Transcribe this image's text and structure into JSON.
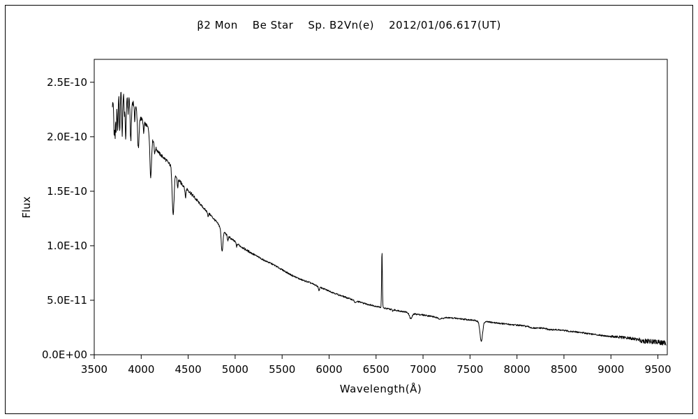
{
  "chart_data": {
    "type": "line",
    "title": "β2 Mon    Be Star    Sp. B2Vn(e)    2012/01/06.617(UT)",
    "xlabel": "Wavelength(Å)",
    "ylabel": "Flux",
    "legend": "none",
    "grid": "off",
    "xlim": [
      3500,
      9600
    ],
    "ylim_e10": [
      0,
      2.71
    ],
    "flux_unit_scale": 1e-10,
    "x_ticks": [
      {
        "v": 3500,
        "label": "3500"
      },
      {
        "v": 4000,
        "label": "4000"
      },
      {
        "v": 4500,
        "label": "4500"
      },
      {
        "v": 5000,
        "label": "5000"
      },
      {
        "v": 5500,
        "label": "5500"
      },
      {
        "v": 6000,
        "label": "6000"
      },
      {
        "v": 6500,
        "label": "6500"
      },
      {
        "v": 7000,
        "label": "7000"
      },
      {
        "v": 7500,
        "label": "7500"
      },
      {
        "v": 8000,
        "label": "8000"
      },
      {
        "v": 8500,
        "label": "8500"
      },
      {
        "v": 9000,
        "label": "9000"
      },
      {
        "v": 9500,
        "label": "9500"
      }
    ],
    "y_ticks": [
      {
        "v": 0.0,
        "label": "0.0E+00"
      },
      {
        "v": 0.5,
        "label": "5.0E-11"
      },
      {
        "v": 1.0,
        "label": "1.0E-10"
      },
      {
        "v": 1.5,
        "label": "1.5E-10"
      },
      {
        "v": 2.0,
        "label": "2.0E-10"
      },
      {
        "v": 2.5,
        "label": "2.5E-10"
      }
    ],
    "sample_range": [
      3693,
      9590
    ],
    "sample_step_angstrom": 3,
    "continuum_e10": [
      [
        3690,
        2.28
      ],
      [
        3705,
        2.33
      ],
      [
        3720,
        2.4
      ],
      [
        3740,
        2.46
      ],
      [
        3760,
        2.47
      ],
      [
        3780,
        2.45
      ],
      [
        3800,
        2.44
      ],
      [
        3830,
        2.41
      ],
      [
        3860,
        2.38
      ],
      [
        3900,
        2.34
      ],
      [
        3940,
        2.27
      ],
      [
        3980,
        2.2
      ],
      [
        4020,
        2.14
      ],
      [
        4060,
        2.1
      ],
      [
        4100,
        2.05
      ],
      [
        4150,
        1.9
      ],
      [
        4200,
        1.84
      ],
      [
        4260,
        1.79
      ],
      [
        4320,
        1.73
      ],
      [
        4380,
        1.62
      ],
      [
        4440,
        1.56
      ],
      [
        4500,
        1.51
      ],
      [
        4560,
        1.45
      ],
      [
        4620,
        1.39
      ],
      [
        4680,
        1.33
      ],
      [
        4740,
        1.28
      ],
      [
        4800,
        1.22
      ],
      [
        4860,
        1.15
      ],
      [
        4920,
        1.09
      ],
      [
        4980,
        1.05
      ],
      [
        5050,
        1.0
      ],
      [
        5120,
        0.96
      ],
      [
        5200,
        0.92
      ],
      [
        5300,
        0.87
      ],
      [
        5400,
        0.83
      ],
      [
        5500,
        0.78
      ],
      [
        5600,
        0.73
      ],
      [
        5700,
        0.69
      ],
      [
        5800,
        0.66
      ],
      [
        5900,
        0.62
      ],
      [
        6000,
        0.585
      ],
      [
        6100,
        0.55
      ],
      [
        6200,
        0.52
      ],
      [
        6300,
        0.49
      ],
      [
        6400,
        0.465
      ],
      [
        6500,
        0.445
      ],
      [
        6600,
        0.425
      ],
      [
        6700,
        0.41
      ],
      [
        6800,
        0.395
      ],
      [
        6900,
        0.375
      ],
      [
        7000,
        0.365
      ],
      [
        7100,
        0.352
      ],
      [
        7200,
        0.345
      ],
      [
        7300,
        0.338
      ],
      [
        7400,
        0.33
      ],
      [
        7500,
        0.32
      ],
      [
        7600,
        0.308
      ],
      [
        7700,
        0.3
      ],
      [
        7800,
        0.29
      ],
      [
        7900,
        0.28
      ],
      [
        8000,
        0.272
      ],
      [
        8100,
        0.262
      ],
      [
        8200,
        0.252
      ],
      [
        8300,
        0.242
      ],
      [
        8400,
        0.232
      ],
      [
        8500,
        0.222
      ],
      [
        8600,
        0.212
      ],
      [
        8700,
        0.202
      ],
      [
        8800,
        0.19
      ],
      [
        8900,
        0.178
      ],
      [
        9000,
        0.168
      ],
      [
        9100,
        0.16
      ],
      [
        9200,
        0.152
      ],
      [
        9300,
        0.142
      ],
      [
        9400,
        0.128
      ],
      [
        9500,
        0.115
      ],
      [
        9600,
        0.105
      ]
    ],
    "absorption_lines": [
      [
        3712,
        4,
        0.15
      ],
      [
        3722,
        4,
        0.16
      ],
      [
        3734,
        4.5,
        0.17
      ],
      [
        3750,
        5,
        0.17
      ],
      [
        3771,
        5,
        0.17
      ],
      [
        3798,
        5.5,
        0.17
      ],
      [
        3820,
        4,
        0.08
      ],
      [
        3835,
        6,
        0.17
      ],
      [
        3860,
        4,
        0.07
      ],
      [
        3889,
        7,
        0.16
      ],
      [
        3930,
        4,
        0.06
      ],
      [
        3970,
        8,
        0.15
      ],
      [
        4026,
        4,
        0.05
      ],
      [
        4101,
        9,
        0.2
      ],
      [
        4144,
        4,
        0.04
      ],
      [
        4340,
        10,
        0.24
      ],
      [
        4388,
        4,
        0.05
      ],
      [
        4471,
        5,
        0.06
      ],
      [
        4713,
        4,
        0.03
      ],
      [
        4861,
        9,
        0.17
      ],
      [
        4922,
        5,
        0.04
      ],
      [
        5016,
        5,
        0.03
      ],
      [
        5893,
        6,
        0.05
      ],
      [
        6280,
        10,
        0.04
      ],
      [
        6678,
        5,
        0.03
      ],
      [
        6870,
        14,
        0.13
      ],
      [
        7180,
        35,
        0.045
      ],
      [
        7620,
        14,
        0.6
      ],
      [
        8180,
        40,
        0.04
      ],
      [
        8350,
        30,
        0.03
      ],
      [
        9350,
        60,
        0.06
      ]
    ],
    "emission_lines": [
      [
        6563,
        4,
        0.52
      ]
    ],
    "noise_segments_e10": [
      [
        4000,
        0.03
      ],
      [
        4600,
        0.016
      ],
      [
        5200,
        0.01
      ],
      [
        9000,
        0.007
      ],
      [
        9300,
        0.013
      ],
      [
        9999,
        0.022
      ]
    ]
  }
}
